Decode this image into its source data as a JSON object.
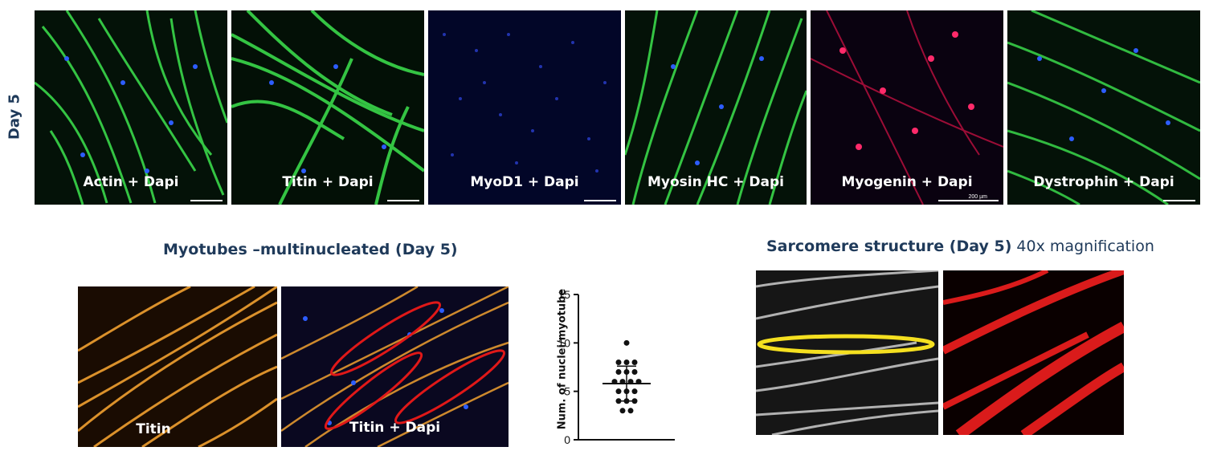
{
  "row_label": "Day 5",
  "day5_panels": [
    {
      "caption": "Actin + Dapi",
      "fluor": "green"
    },
    {
      "caption": "Titin + Dapi",
      "fluor": "green"
    },
    {
      "caption": "MyoD1 + Dapi",
      "fluor": "blue"
    },
    {
      "caption": "Myosin HC + Dapi",
      "fluor": "green"
    },
    {
      "caption": "Myogenin + Dapi",
      "fluor": "red",
      "scale_bar": "200 µm"
    },
    {
      "caption": "Dystrophin + Dapi",
      "fluor": "green"
    }
  ],
  "myotubes": {
    "title": "Myotubes –multinucleated (Day 5)",
    "panel1_caption": "Titin",
    "panel2_caption": "Titin + Dapi"
  },
  "sarcomere": {
    "title_bold": "Sarcomere structure (Day 5)",
    "title_light": " 40x magnification"
  },
  "colors": {
    "title": "#1f3a5a",
    "green": "#3ad84a",
    "orange": "#f0a030",
    "red": "#ff2020",
    "dapi": "#2d5dff",
    "highlight_yellow": "#f5e020",
    "outline_red": "#e01818"
  },
  "chart_data": {
    "type": "scatter",
    "ylabel": "Num. of nuclei/myotube",
    "ylim": [
      0,
      15
    ],
    "yticks": [
      "0",
      "5",
      "10",
      "15"
    ],
    "points": [
      10,
      8,
      8,
      8,
      7,
      7,
      7,
      6,
      6,
      6,
      6,
      5,
      5,
      5,
      4,
      4,
      4,
      3,
      3
    ],
    "mean": 5.8,
    "sd": 1.8
  }
}
